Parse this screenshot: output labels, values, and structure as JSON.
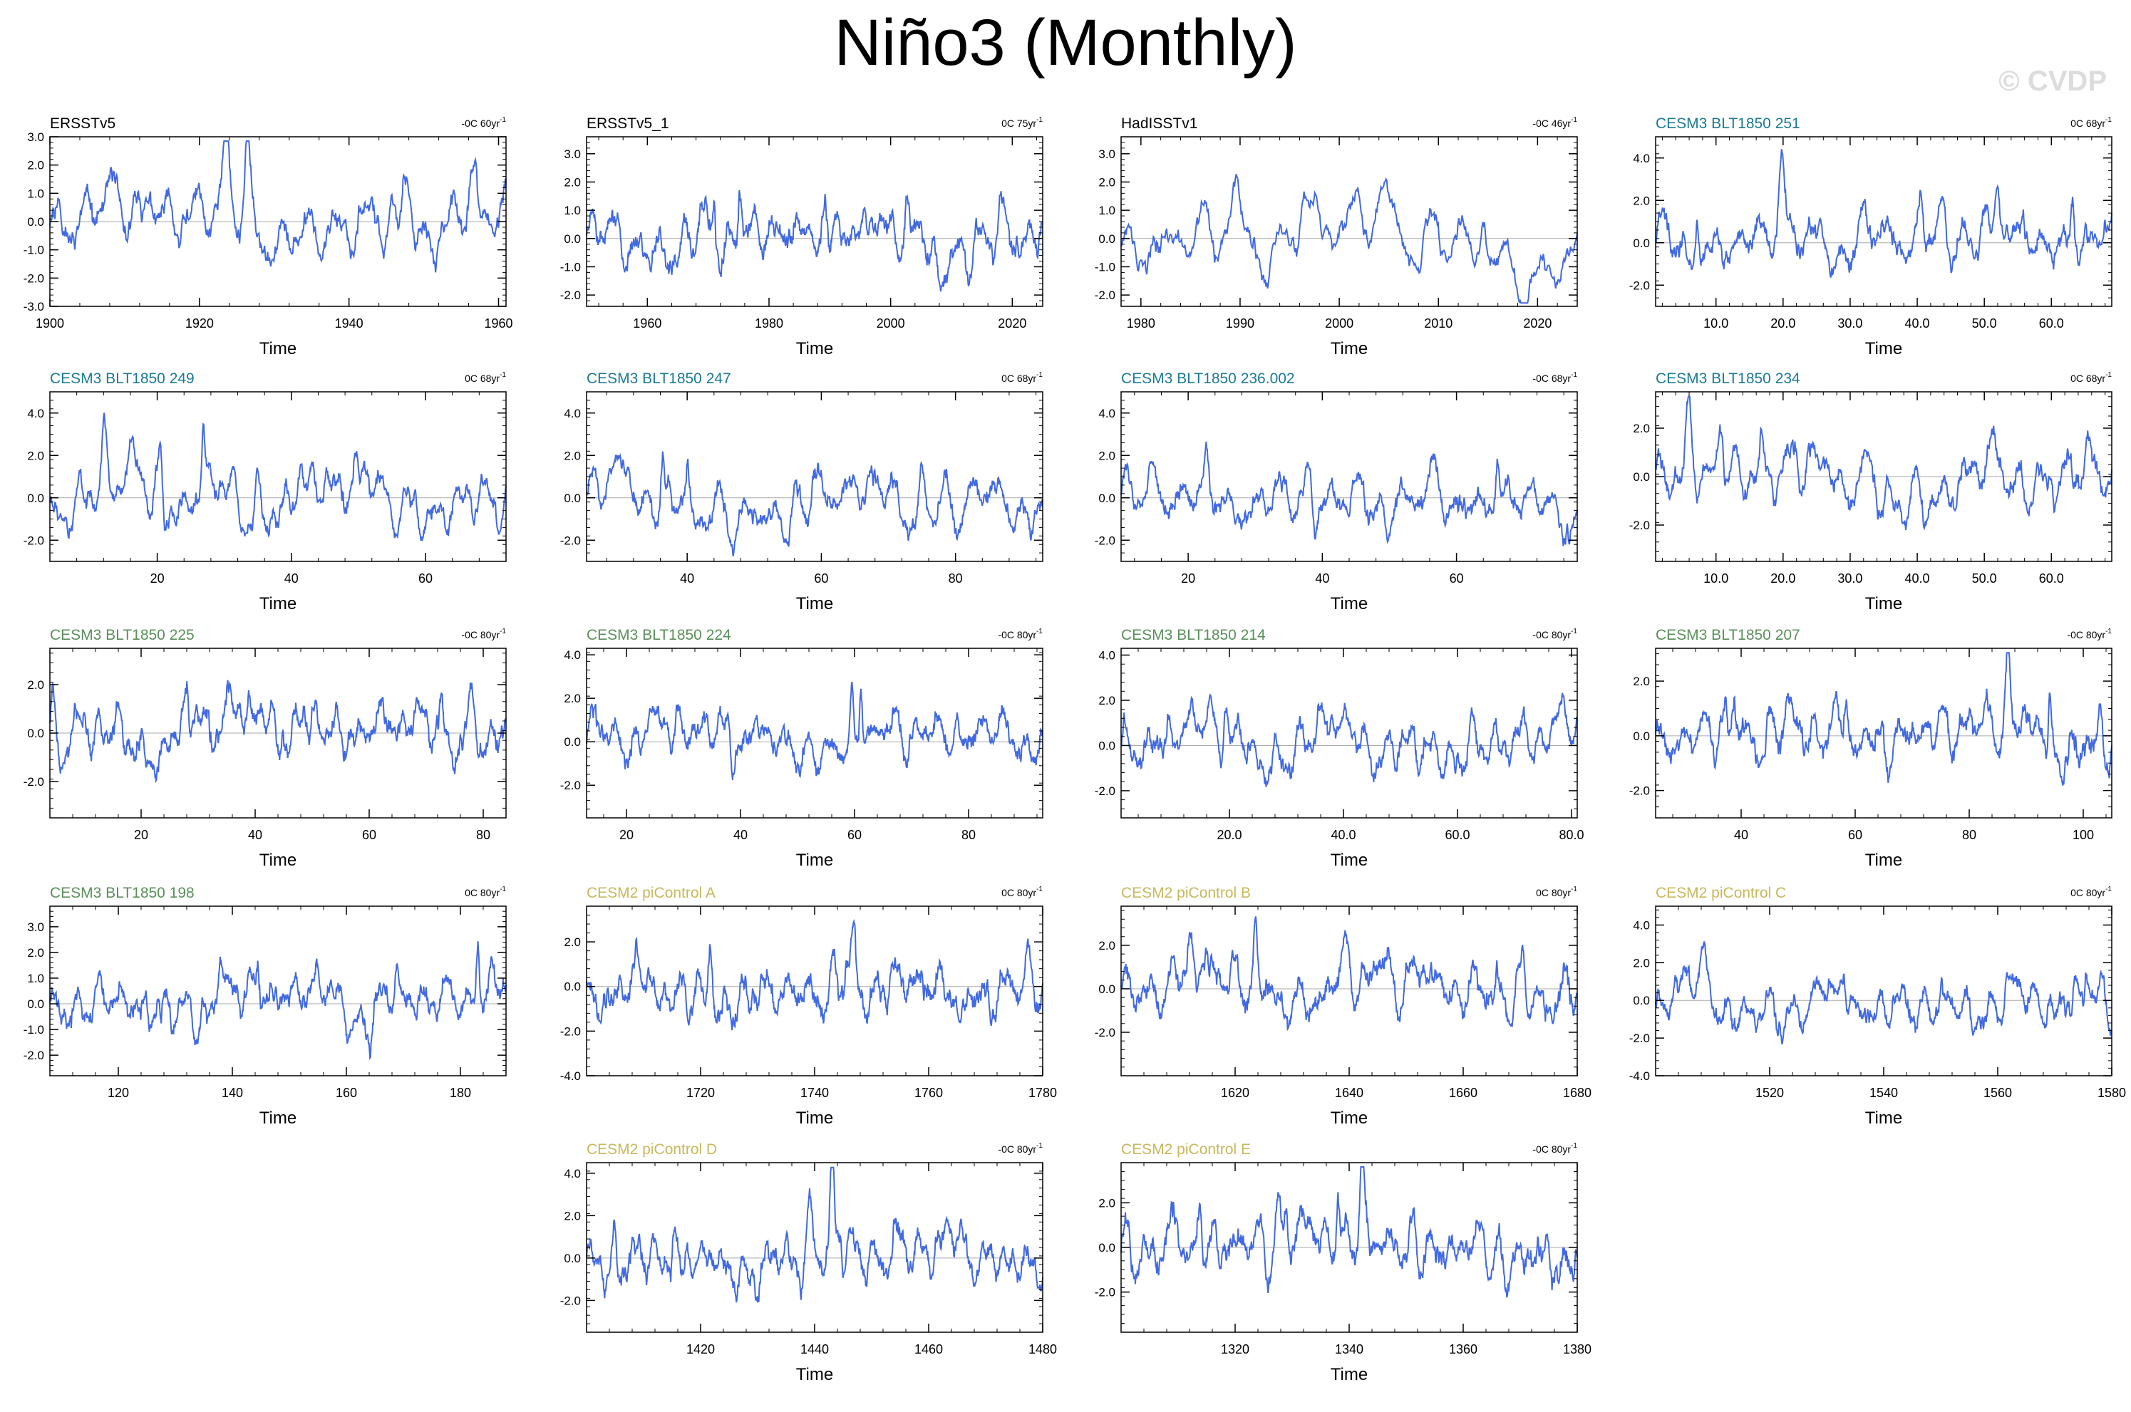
{
  "figure": {
    "title": "Niño3 (Monthly)",
    "watermark": "© CVDP",
    "line_color": "#4169e1",
    "zero_line_color": "#aaaaaa"
  },
  "chart_data": [
    {
      "type": "line",
      "title": "ERSSTv5",
      "title_color": "#000000",
      "trend": "-0C 60yr",
      "trend_exp": "-1",
      "xlabel": "Time",
      "ylabel": "",
      "xlim": [
        1900,
        1961
      ],
      "ylim": [
        -3,
        3
      ],
      "yticks": [
        -3,
        -2,
        -1,
        0,
        1,
        2,
        3
      ],
      "ytick_labels": [
        "-3.0",
        "-2.0",
        "-1.0",
        "0.0",
        "1.0",
        "2.0",
        "3.0"
      ],
      "xticks": [
        1900,
        1920,
        1940,
        1960
      ],
      "xtick_labels": [
        "1900",
        "1920",
        "1940",
        "1960"
      ],
      "seed": 11,
      "n": 732,
      "amp": 0.95
    },
    {
      "type": "line",
      "title": "ERSSTv5_1",
      "title_color": "#000000",
      "trend": "0C 75yr",
      "trend_exp": "-1",
      "xlabel": "Time",
      "ylabel": "",
      "xlim": [
        1950,
        2025
      ],
      "ylim": [
        -2.4,
        3.6
      ],
      "yticks": [
        -2,
        -1,
        0,
        1,
        2,
        3
      ],
      "ytick_labels": [
        "-2.0",
        "-1.0",
        "0.0",
        "1.0",
        "2.0",
        "3.0"
      ],
      "xticks": [
        1960,
        1980,
        2000,
        2020
      ],
      "xtick_labels": [
        "1960",
        "1980",
        "2000",
        "2020"
      ],
      "seed": 23,
      "n": 900,
      "amp": 0.9
    },
    {
      "type": "line",
      "title": "HadISSTv1",
      "title_color": "#000000",
      "trend": "-0C 46yr",
      "trend_exp": "-1",
      "xlabel": "Time",
      "ylabel": "",
      "xlim": [
        1978,
        2024
      ],
      "ylim": [
        -2.4,
        3.6
      ],
      "yticks": [
        -2,
        -1,
        0,
        1,
        2,
        3
      ],
      "ytick_labels": [
        "-2.0",
        "-1.0",
        "0.0",
        "1.0",
        "2.0",
        "3.0"
      ],
      "xticks": [
        1980,
        1990,
        2000,
        2010,
        2020
      ],
      "xtick_labels": [
        "1980",
        "1990",
        "2000",
        "2010",
        "2020"
      ],
      "seed": 37,
      "n": 552,
      "amp": 0.9
    },
    {
      "type": "line",
      "title": "CESM3 BLT1850 251",
      "title_color": "#1a7a96",
      "trend": "0C 68yr",
      "trend_exp": "-1",
      "xlabel": "Time",
      "ylabel": "",
      "xlim": [
        1,
        69
      ],
      "ylim": [
        -3,
        5
      ],
      "yticks": [
        -2,
        0,
        2,
        4
      ],
      "ytick_labels": [
        "-2.0",
        "0.0",
        "2.0",
        "4.0"
      ],
      "xticks": [
        10,
        20,
        30,
        40,
        50,
        60
      ],
      "xtick_labels": [
        "10.0",
        "20.0",
        "30.0",
        "40.0",
        "50.0",
        "60.0"
      ],
      "seed": 41,
      "n": 816,
      "amp": 1.15
    },
    {
      "type": "line",
      "title": "CESM3 BLT1850 249",
      "title_color": "#1a7a96",
      "trend": "0C 68yr",
      "trend_exp": "-1",
      "xlabel": "Time",
      "ylabel": "",
      "xlim": [
        4,
        72
      ],
      "ylim": [
        -3,
        5
      ],
      "yticks": [
        -2,
        0,
        2,
        4
      ],
      "ytick_labels": [
        "-2.0",
        "0.0",
        "2.0",
        "4.0"
      ],
      "xticks": [
        20,
        40,
        60
      ],
      "xtick_labels": [
        "20",
        "40",
        "60"
      ],
      "seed": 53,
      "n": 816,
      "amp": 1.15
    },
    {
      "type": "line",
      "title": "CESM3 BLT1850 247",
      "title_color": "#1a7a96",
      "trend": "0C 68yr",
      "trend_exp": "-1",
      "xlabel": "Time",
      "ylabel": "",
      "xlim": [
        25,
        93
      ],
      "ylim": [
        -3,
        5
      ],
      "yticks": [
        -2,
        0,
        2,
        4
      ],
      "ytick_labels": [
        "-2.0",
        "0.0",
        "2.0",
        "4.0"
      ],
      "xticks": [
        40,
        60,
        80
      ],
      "xtick_labels": [
        "40",
        "60",
        "80"
      ],
      "seed": 61,
      "n": 816,
      "amp": 1.15
    },
    {
      "type": "line",
      "title": "CESM3 BLT1850 236.002",
      "title_color": "#1a7a96",
      "trend": "-0C 68yr",
      "trend_exp": "-1",
      "xlabel": "Time",
      "ylabel": "",
      "xlim": [
        10,
        78
      ],
      "ylim": [
        -3,
        5
      ],
      "yticks": [
        -2,
        0,
        2,
        4
      ],
      "ytick_labels": [
        "-2.0",
        "0.0",
        "2.0",
        "4.0"
      ],
      "xticks": [
        20,
        40,
        60
      ],
      "xtick_labels": [
        "20",
        "40",
        "60"
      ],
      "seed": 73,
      "n": 816,
      "amp": 1.15
    },
    {
      "type": "line",
      "title": "CESM3 BLT1850 234",
      "title_color": "#1a7a96",
      "trend": "0C 68yr",
      "trend_exp": "-1",
      "xlabel": "Time",
      "ylabel": "",
      "xlim": [
        1,
        69
      ],
      "ylim": [
        -3.5,
        3.5
      ],
      "yticks": [
        -2,
        0,
        2
      ],
      "ytick_labels": [
        "-2.0",
        "0.0",
        "2.0"
      ],
      "xticks": [
        10,
        20,
        30,
        40,
        50,
        60
      ],
      "xtick_labels": [
        "10.0",
        "20.0",
        "30.0",
        "40.0",
        "50.0",
        "60.0"
      ],
      "seed": 89,
      "n": 816,
      "amp": 1.05
    },
    {
      "type": "line",
      "title": "CESM3 BLT1850 225",
      "title_color": "#5a8f5a",
      "trend": "-0C 80yr",
      "trend_exp": "-1",
      "xlabel": "Time",
      "ylabel": "",
      "xlim": [
        4,
        84
      ],
      "ylim": [
        -3.5,
        3.5
      ],
      "yticks": [
        -2,
        0,
        2
      ],
      "ytick_labels": [
        "-2.0",
        "0.0",
        "2.0"
      ],
      "xticks": [
        20,
        40,
        60,
        80
      ],
      "xtick_labels": [
        "20",
        "40",
        "60",
        "80"
      ],
      "seed": 97,
      "n": 960,
      "amp": 1.05
    },
    {
      "type": "line",
      "title": "CESM3 BLT1850 224",
      "title_color": "#5a8f5a",
      "trend": "-0C 80yr",
      "trend_exp": "-1",
      "xlabel": "Time",
      "ylabel": "",
      "xlim": [
        13,
        93
      ],
      "ylim": [
        -3.5,
        4.3
      ],
      "yticks": [
        -2,
        0,
        2,
        4
      ],
      "ytick_labels": [
        "-2.0",
        "0.0",
        "2.0",
        "4.0"
      ],
      "xticks": [
        20,
        40,
        60,
        80
      ],
      "xtick_labels": [
        "20",
        "40",
        "60",
        "80"
      ],
      "seed": 103,
      "n": 960,
      "amp": 1.05
    },
    {
      "type": "line",
      "title": "CESM3 BLT1850 214",
      "title_color": "#5a8f5a",
      "trend": "-0C 80yr",
      "trend_exp": "-1",
      "xlabel": "Time",
      "ylabel": "",
      "xlim": [
        1,
        81
      ],
      "ylim": [
        -3.2,
        4.3
      ],
      "yticks": [
        -2,
        0,
        2,
        4
      ],
      "ytick_labels": [
        "-2.0",
        "0.0",
        "2.0",
        "4.0"
      ],
      "xticks": [
        20,
        40,
        60,
        80
      ],
      "xtick_labels": [
        "20.0",
        "40.0",
        "60.0",
        "80.0"
      ],
      "seed": 109,
      "n": 960,
      "amp": 1.0
    },
    {
      "type": "line",
      "title": "CESM3 BLT1850 207",
      "title_color": "#5a8f5a",
      "trend": "-0C 80yr",
      "trend_exp": "-1",
      "xlabel": "Time",
      "ylabel": "",
      "xlim": [
        25,
        105
      ],
      "ylim": [
        -3,
        3.2
      ],
      "yticks": [
        -2,
        0,
        2
      ],
      "ytick_labels": [
        "-2.0",
        "0.0",
        "2.0"
      ],
      "xticks": [
        40,
        60,
        80,
        100
      ],
      "xtick_labels": [
        "40",
        "60",
        "80",
        "100"
      ],
      "seed": 127,
      "n": 960,
      "amp": 0.95
    },
    {
      "type": "line",
      "title": "CESM3 BLT1850 198",
      "title_color": "#5a8f5a",
      "trend": "0C 80yr",
      "trend_exp": "-1",
      "xlabel": "Time",
      "ylabel": "",
      "xlim": [
        108,
        188
      ],
      "ylim": [
        -2.8,
        3.8
      ],
      "yticks": [
        -2,
        -1,
        0,
        1,
        2,
        3
      ],
      "ytick_labels": [
        "-2.0",
        "-1.0",
        "0.0",
        "1.0",
        "2.0",
        "3.0"
      ],
      "xticks": [
        120,
        140,
        160,
        180
      ],
      "xtick_labels": [
        "120",
        "140",
        "160",
        "180"
      ],
      "seed": 131,
      "n": 960,
      "amp": 0.9
    },
    {
      "type": "line",
      "title": "CESM2 piControl A",
      "title_color": "#c8b85a",
      "trend": "0C 80yr",
      "trend_exp": "-1",
      "xlabel": "Time",
      "ylabel": "",
      "xlim": [
        1700,
        1780
      ],
      "ylim": [
        -4,
        3.6
      ],
      "yticks": [
        -4,
        -2,
        0,
        2
      ],
      "ytick_labels": [
        "-4.0",
        "-2.0",
        "0.0",
        "2.0"
      ],
      "xticks": [
        1720,
        1740,
        1760,
        1780
      ],
      "xtick_labels": [
        "1720",
        "1740",
        "1760",
        "1780"
      ],
      "seed": 137,
      "n": 960,
      "amp": 1.2
    },
    {
      "type": "line",
      "title": "CESM2 piControl B",
      "title_color": "#c8b85a",
      "trend": "0C 80yr",
      "trend_exp": "-1",
      "xlabel": "Time",
      "ylabel": "",
      "xlim": [
        1600,
        1680
      ],
      "ylim": [
        -4,
        3.8
      ],
      "yticks": [
        -2,
        0,
        2
      ],
      "ytick_labels": [
        "-2.0",
        "0.0",
        "2.0"
      ],
      "xticks": [
        1620,
        1640,
        1660,
        1680
      ],
      "xtick_labels": [
        "1620",
        "1640",
        "1660",
        "1680"
      ],
      "seed": 149,
      "n": 960,
      "amp": 1.2
    },
    {
      "type": "line",
      "title": "CESM2 piControl C",
      "title_color": "#c8b85a",
      "trend": "0C 80yr",
      "trend_exp": "-1",
      "xlabel": "Time",
      "ylabel": "",
      "xlim": [
        1500,
        1580
      ],
      "ylim": [
        -4,
        5
      ],
      "yticks": [
        -4,
        -2,
        0,
        2,
        4
      ],
      "ytick_labels": [
        "-4.0",
        "-2.0",
        "0.0",
        "2.0",
        "4.0"
      ],
      "xticks": [
        1520,
        1540,
        1560,
        1580
      ],
      "xtick_labels": [
        "1520",
        "1540",
        "1560",
        "1580"
      ],
      "seed": 157,
      "n": 960,
      "amp": 1.2
    },
    {
      "type": "line",
      "title": "CESM2 piControl D",
      "title_color": "#c8b85a",
      "trend": "-0C 80yr",
      "trend_exp": "-1",
      "xlabel": "Time",
      "ylabel": "",
      "xlim": [
        1400,
        1480
      ],
      "ylim": [
        -3.5,
        4.5
      ],
      "yticks": [
        -2,
        0,
        2,
        4
      ],
      "ytick_labels": [
        "-2.0",
        "0.0",
        "2.0",
        "4.0"
      ],
      "xticks": [
        1420,
        1440,
        1460,
        1480
      ],
      "xtick_labels": [
        "1420",
        "1440",
        "1460",
        "1480"
      ],
      "seed": 163,
      "n": 960,
      "amp": 1.2
    },
    {
      "type": "line",
      "title": "CESM2 piControl E",
      "title_color": "#c8b85a",
      "trend": "-0C 80yr",
      "trend_exp": "-1",
      "xlabel": "Time",
      "ylabel": "",
      "xlim": [
        1300,
        1380
      ],
      "ylim": [
        -3.8,
        3.8
      ],
      "yticks": [
        -2,
        0,
        2
      ],
      "ytick_labels": [
        "-2.0",
        "0.0",
        "2.0"
      ],
      "xticks": [
        1320,
        1340,
        1360,
        1380
      ],
      "xtick_labels": [
        "1320",
        "1340",
        "1360",
        "1380"
      ],
      "seed": 173,
      "n": 960,
      "amp": 1.2
    }
  ]
}
